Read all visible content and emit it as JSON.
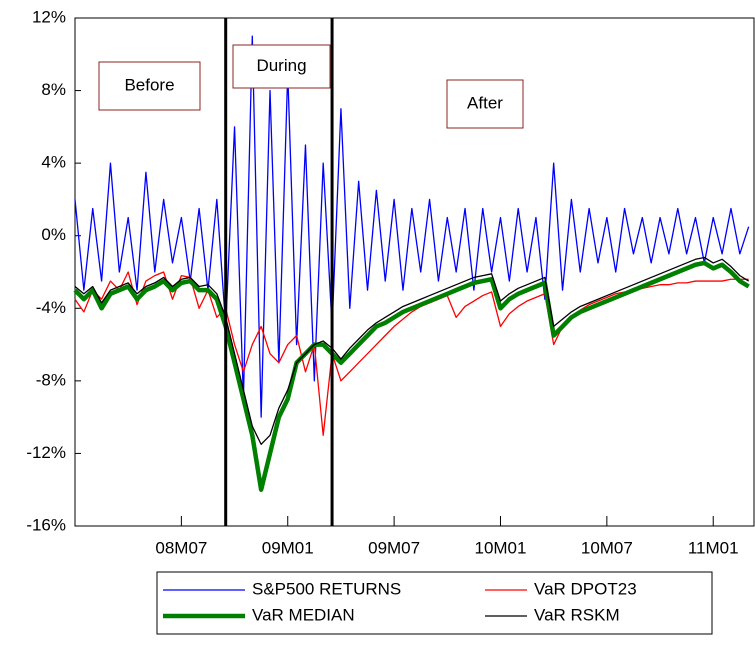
{
  "chart_data": {
    "type": "line",
    "annotations": [
      "Before",
      "During",
      "After"
    ],
    "event_lines": [
      8.5,
      14.5
    ],
    "x": [
      0,
      0.5,
      1,
      1.5,
      2,
      2.5,
      3,
      3.5,
      4,
      4.5,
      5,
      5.5,
      6,
      6.5,
      7,
      7.5,
      8,
      8.5,
      9,
      9.5,
      10,
      10.5,
      11,
      11.5,
      12,
      12.5,
      13,
      13.5,
      14,
      14.5,
      15,
      15.5,
      16,
      16.5,
      17,
      17.5,
      18,
      18.5,
      19,
      19.5,
      20,
      20.5,
      21,
      21.5,
      22,
      22.5,
      23,
      23.5,
      24,
      24.5,
      25,
      25.5,
      26,
      26.5,
      27,
      27.5,
      28,
      28.5,
      29,
      29.5,
      30,
      30.5,
      31,
      31.5,
      32,
      32.5,
      33,
      33.5,
      34,
      34.5,
      35,
      35.5,
      36,
      36.5,
      37,
      37.5,
      38
    ],
    "xlim": [
      0,
      38.3
    ],
    "xticks": [
      {
        "value": 6,
        "label": "08M07"
      },
      {
        "value": 12,
        "label": "09M01"
      },
      {
        "value": 18,
        "label": "09M07"
      },
      {
        "value": 24,
        "label": "10M01"
      },
      {
        "value": 30,
        "label": "10M07"
      },
      {
        "value": 36,
        "label": "11M01"
      }
    ],
    "ylim": [
      -16,
      12
    ],
    "yticks": [
      {
        "value": -16,
        "label": "-16%"
      },
      {
        "value": -12,
        "label": "-12%"
      },
      {
        "value": -8,
        "label": "-8%"
      },
      {
        "value": -4,
        "label": "-4%"
      },
      {
        "value": 0,
        "label": "0%"
      },
      {
        "value": 4,
        "label": "4%"
      },
      {
        "value": 8,
        "label": "8%"
      },
      {
        "value": 12,
        "label": "12%"
      }
    ],
    "series": [
      {
        "name": "S&P500 RETURNS",
        "color": "#0000ff",
        "line_width": 1.3,
        "values": [
          2,
          -3,
          1.5,
          -2.5,
          4,
          -2,
          1,
          -3,
          3.5,
          -2,
          2,
          -1.5,
          1,
          -2.5,
          1.5,
          -3,
          2,
          -5,
          6,
          -9,
          11,
          -10,
          8,
          -7,
          9,
          -6,
          5,
          -8,
          4,
          -5,
          7,
          -4,
          3,
          -3,
          2.5,
          -2.5,
          2,
          -3,
          1.5,
          -2,
          2,
          -2.5,
          1,
          -2,
          1.5,
          -3,
          1.5,
          -2,
          1,
          -2.5,
          1.5,
          -2,
          1,
          -3.5,
          4,
          -3,
          2,
          -2,
          1.5,
          -1.5,
          1,
          -2,
          1.5,
          -1,
          1,
          -1.5,
          1,
          -1,
          1.5,
          -1,
          1,
          -1.5,
          1,
          -1,
          1.5,
          -1,
          0.5
        ]
      },
      {
        "name": "VaR DPOT23",
        "color": "#ff0000",
        "line_width": 1.3,
        "values": [
          -3.5,
          -4.2,
          -3,
          -3.5,
          -2.5,
          -3,
          -2,
          -3.8,
          -2.5,
          -2.2,
          -2,
          -3.5,
          -2.2,
          -2.3,
          -4,
          -3,
          -4.5,
          -4,
          -6,
          -7.5,
          -6,
          -5,
          -6.5,
          -7,
          -6,
          -5.5,
          -7.5,
          -6,
          -11,
          -6.5,
          -8,
          -7.5,
          -7,
          -6.5,
          -6,
          -5.5,
          -5,
          -4.6,
          -4.2,
          -3.9,
          -3.7,
          -3.5,
          -3.3,
          -4.5,
          -3.9,
          -3.6,
          -3.3,
          -3.1,
          -5,
          -4.3,
          -3.9,
          -3.6,
          -3.4,
          -3.2,
          -6,
          -5,
          -4.5,
          -4.1,
          -3.8,
          -3.6,
          -3.4,
          -3.2,
          -3.1,
          -3,
          -2.9,
          -2.8,
          -2.7,
          -2.7,
          -2.6,
          -2.6,
          -2.5,
          -2.5,
          -2.5,
          -2.5,
          -2.4,
          -2.4,
          -2.4
        ]
      },
      {
        "name": "VaR MEDIAN",
        "color": "#008000",
        "line_width": 4.5,
        "values": [
          -3,
          -3.5,
          -3,
          -4,
          -3.2,
          -3,
          -2.8,
          -3.5,
          -3,
          -2.8,
          -2.5,
          -3,
          -2.6,
          -2.5,
          -3,
          -3,
          -3.5,
          -5,
          -7,
          -9,
          -11,
          -14,
          -12,
          -10,
          -9,
          -7,
          -6.5,
          -6,
          -6,
          -6.5,
          -7,
          -6.5,
          -6,
          -5.5,
          -5,
          -4.8,
          -4.5,
          -4.2,
          -4,
          -3.8,
          -3.6,
          -3.4,
          -3.2,
          -3,
          -2.8,
          -2.6,
          -2.5,
          -2.4,
          -4,
          -3.5,
          -3.2,
          -3,
          -2.8,
          -2.6,
          -5.5,
          -5,
          -4.5,
          -4.2,
          -4,
          -3.8,
          -3.6,
          -3.4,
          -3.2,
          -3,
          -2.8,
          -2.6,
          -2.4,
          -2.2,
          -2,
          -1.8,
          -1.6,
          -1.5,
          -1.8,
          -1.6,
          -2,
          -2.5,
          -2.8
        ]
      },
      {
        "name": "VaR RSKM",
        "color": "#000000",
        "line_width": 1.3,
        "values": [
          -2.8,
          -3.2,
          -2.8,
          -3.7,
          -3,
          -2.8,
          -2.6,
          -3.2,
          -2.8,
          -2.6,
          -2.3,
          -2.8,
          -2.4,
          -2.3,
          -2.8,
          -2.7,
          -3.2,
          -4.5,
          -6.5,
          -8.5,
          -10.5,
          -11.5,
          -11,
          -9.5,
          -8.5,
          -7,
          -6.5,
          -6,
          -5.8,
          -6.2,
          -6.8,
          -6.2,
          -5.7,
          -5.2,
          -4.8,
          -4.5,
          -4.2,
          -3.9,
          -3.7,
          -3.5,
          -3.3,
          -3.1,
          -2.9,
          -2.7,
          -2.5,
          -2.3,
          -2.2,
          -2.1,
          -3.6,
          -3.2,
          -2.9,
          -2.7,
          -2.5,
          -2.3,
          -5,
          -4.6,
          -4.2,
          -3.9,
          -3.7,
          -3.5,
          -3.3,
          -3.1,
          -2.9,
          -2.7,
          -2.5,
          -2.3,
          -2.1,
          -1.9,
          -1.7,
          -1.5,
          -1.3,
          -1.2,
          -1.5,
          -1.3,
          -1.7,
          -2.2,
          -2.5
        ]
      }
    ]
  }
}
